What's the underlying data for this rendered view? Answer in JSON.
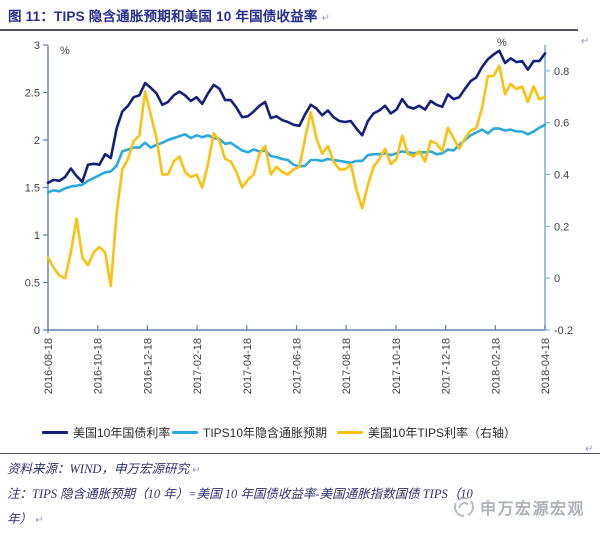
{
  "title": {
    "text": "图 11：TIPS 隐含通胀预期和美国 10 年国债收益率"
  },
  "marks": {
    "return_glyph": "↵"
  },
  "chart_data": {
    "type": "line",
    "title": "TIPS 隐含通胀预期和美国 10 年国债收益率",
    "x_axis": {
      "tick_labels": [
        "2016-08-18",
        "2016-10-18",
        "2016-12-18",
        "2017-02-18",
        "2017-04-18",
        "2017-06-18",
        "2017-08-18",
        "2017-10-18",
        "2017-12-18",
        "2018-02-18",
        "2018-04-18"
      ]
    },
    "left_axis": {
      "unit": "%",
      "min": 0,
      "max": 3,
      "ticks": [
        3,
        2.5,
        2,
        1.5,
        1,
        0.5,
        0
      ]
    },
    "right_axis": {
      "unit": "%",
      "min": -0.2,
      "max": 0.9,
      "ticks": [
        0.8,
        0.6,
        0.4,
        0.2,
        0,
        -0.2
      ]
    },
    "grid": false,
    "legend_position": "bottom",
    "series": [
      {
        "name": "美国10年国债利率",
        "axis": "left",
        "color": "#16207c",
        "values": [
          1.55,
          1.58,
          1.57,
          1.61,
          1.7,
          1.62,
          1.56,
          1.74,
          1.75,
          1.74,
          1.85,
          1.81,
          2.12,
          2.3,
          2.36,
          2.45,
          2.47,
          2.6,
          2.55,
          2.49,
          2.37,
          2.4,
          2.47,
          2.51,
          2.47,
          2.41,
          2.45,
          2.38,
          2.49,
          2.58,
          2.54,
          2.42,
          2.42,
          2.34,
          2.24,
          2.25,
          2.3,
          2.36,
          2.4,
          2.23,
          2.25,
          2.21,
          2.19,
          2.16,
          2.15,
          2.27,
          2.37,
          2.33,
          2.26,
          2.31,
          2.24,
          2.2,
          2.19,
          2.2,
          2.12,
          2.05,
          2.2,
          2.28,
          2.31,
          2.36,
          2.28,
          2.32,
          2.43,
          2.35,
          2.33,
          2.36,
          2.32,
          2.41,
          2.37,
          2.35,
          2.48,
          2.43,
          2.45,
          2.54,
          2.62,
          2.66,
          2.77,
          2.85,
          2.9,
          2.94,
          2.81,
          2.86,
          2.82,
          2.83,
          2.74,
          2.83,
          2.83,
          2.91
        ]
      },
      {
        "name": "TIPS10年隐含通胀预期",
        "axis": "left",
        "color": "#2ba9dd",
        "values": [
          1.45,
          1.47,
          1.46,
          1.49,
          1.51,
          1.52,
          1.53,
          1.57,
          1.6,
          1.63,
          1.66,
          1.67,
          1.73,
          1.88,
          1.9,
          1.92,
          1.92,
          1.97,
          1.92,
          1.95,
          1.97,
          2.0,
          2.02,
          2.04,
          2.06,
          2.02,
          2.05,
          2.03,
          2.05,
          2.02,
          2.01,
          1.96,
          1.97,
          1.93,
          1.89,
          1.87,
          1.9,
          1.88,
          1.89,
          1.83,
          1.82,
          1.8,
          1.79,
          1.74,
          1.72,
          1.73,
          1.79,
          1.79,
          1.78,
          1.8,
          1.79,
          1.78,
          1.77,
          1.76,
          1.78,
          1.78,
          1.84,
          1.85,
          1.85,
          1.86,
          1.84,
          1.86,
          1.88,
          1.87,
          1.86,
          1.87,
          1.87,
          1.88,
          1.85,
          1.86,
          1.9,
          1.89,
          1.95,
          2.0,
          2.05,
          2.08,
          2.11,
          2.07,
          2.12,
          2.12,
          2.1,
          2.11,
          2.09,
          2.09,
          2.06,
          2.09,
          2.13,
          2.16
        ]
      },
      {
        "name": "美国10年TIPS利率（右轴）",
        "axis": "right",
        "color": "#fcc110",
        "values": [
          0.08,
          0.04,
          0.01,
          0.0,
          0.1,
          0.23,
          0.08,
          0.05,
          0.1,
          0.12,
          0.1,
          -0.03,
          0.25,
          0.42,
          0.46,
          0.53,
          0.55,
          0.72,
          0.63,
          0.54,
          0.4,
          0.4,
          0.45,
          0.47,
          0.41,
          0.39,
          0.4,
          0.35,
          0.44,
          0.56,
          0.53,
          0.46,
          0.45,
          0.41,
          0.35,
          0.38,
          0.4,
          0.48,
          0.51,
          0.4,
          0.43,
          0.41,
          0.4,
          0.42,
          0.43,
          0.54,
          0.64,
          0.54,
          0.48,
          0.51,
          0.45,
          0.42,
          0.42,
          0.44,
          0.34,
          0.27,
          0.36,
          0.43,
          0.46,
          0.5,
          0.44,
          0.46,
          0.55,
          0.48,
          0.47,
          0.49,
          0.45,
          0.53,
          0.52,
          0.49,
          0.58,
          0.54,
          0.5,
          0.54,
          0.57,
          0.58,
          0.66,
          0.78,
          0.78,
          0.82,
          0.71,
          0.75,
          0.73,
          0.74,
          0.68,
          0.74,
          0.69,
          0.7
        ]
      }
    ],
    "axis_colors": {
      "left_bottom": "#5e82ad",
      "right": "#79b5d9",
      "tick_label": "#404040"
    }
  },
  "source": {
    "text": "资料来源：WIND，申万宏源研究"
  },
  "note": {
    "line1": "注：TIPS 隐含通胀预期（10 年）=美国 10 年国债收益率-美国通胀指数国债 TIPS（10",
    "line2": "年）"
  },
  "logo": {
    "text": "申万宏源宏观"
  }
}
